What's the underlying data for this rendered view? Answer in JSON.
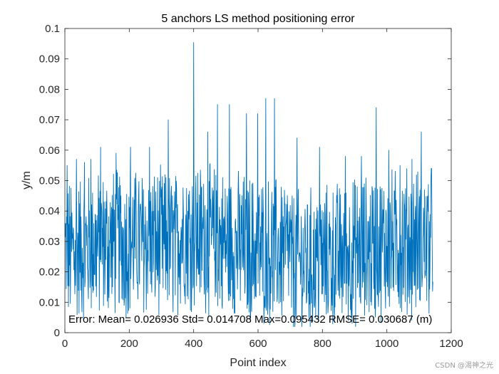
{
  "chart_data": {
    "type": "line",
    "title": "5 anchors LS method positioning error",
    "xlabel": "Point index",
    "ylabel": "y/m",
    "xlim": [
      0,
      1200
    ],
    "ylim": [
      0,
      0.1
    ],
    "xticks": [
      "0",
      "200",
      "400",
      "600",
      "800",
      "1000",
      "1200"
    ],
    "yticks": [
      "0",
      "0.01",
      "0.02",
      "0.03",
      "0.04",
      "0.05",
      "0.06",
      "0.07",
      "0.08",
      "0.09",
      "0.1"
    ],
    "grid": false,
    "series_color": "#0072BD",
    "n_points": 1143,
    "peaks": [
      {
        "x": 6,
        "y": 0.055
      },
      {
        "x": 35,
        "y": 0.057
      },
      {
        "x": 60,
        "y": 0.056
      },
      {
        "x": 80,
        "y": 0.057
      },
      {
        "x": 110,
        "y": 0.061
      },
      {
        "x": 158,
        "y": 0.059
      },
      {
        "x": 203,
        "y": 0.061
      },
      {
        "x": 262,
        "y": 0.061
      },
      {
        "x": 320,
        "y": 0.07
      },
      {
        "x": 399,
        "y": 0.0954
      },
      {
        "x": 443,
        "y": 0.066
      },
      {
        "x": 473,
        "y": 0.075
      },
      {
        "x": 510,
        "y": 0.075
      },
      {
        "x": 563,
        "y": 0.072
      },
      {
        "x": 598,
        "y": 0.072
      },
      {
        "x": 623,
        "y": 0.077
      },
      {
        "x": 650,
        "y": 0.077
      },
      {
        "x": 720,
        "y": 0.064
      },
      {
        "x": 790,
        "y": 0.061
      },
      {
        "x": 870,
        "y": 0.058
      },
      {
        "x": 920,
        "y": 0.058
      },
      {
        "x": 966,
        "y": 0.074
      },
      {
        "x": 1005,
        "y": 0.06
      },
      {
        "x": 1040,
        "y": 0.055
      },
      {
        "x": 1077,
        "y": 0.057
      },
      {
        "x": 1106,
        "y": 0.066
      },
      {
        "x": 1137,
        "y": 0.054
      }
    ],
    "annotation": "Error: Mean= 0.026936 Std= 0.014708 Max=0.095432 RMSE= 0.030687 (m)"
  },
  "watermark": "CSDN @渴神之光"
}
